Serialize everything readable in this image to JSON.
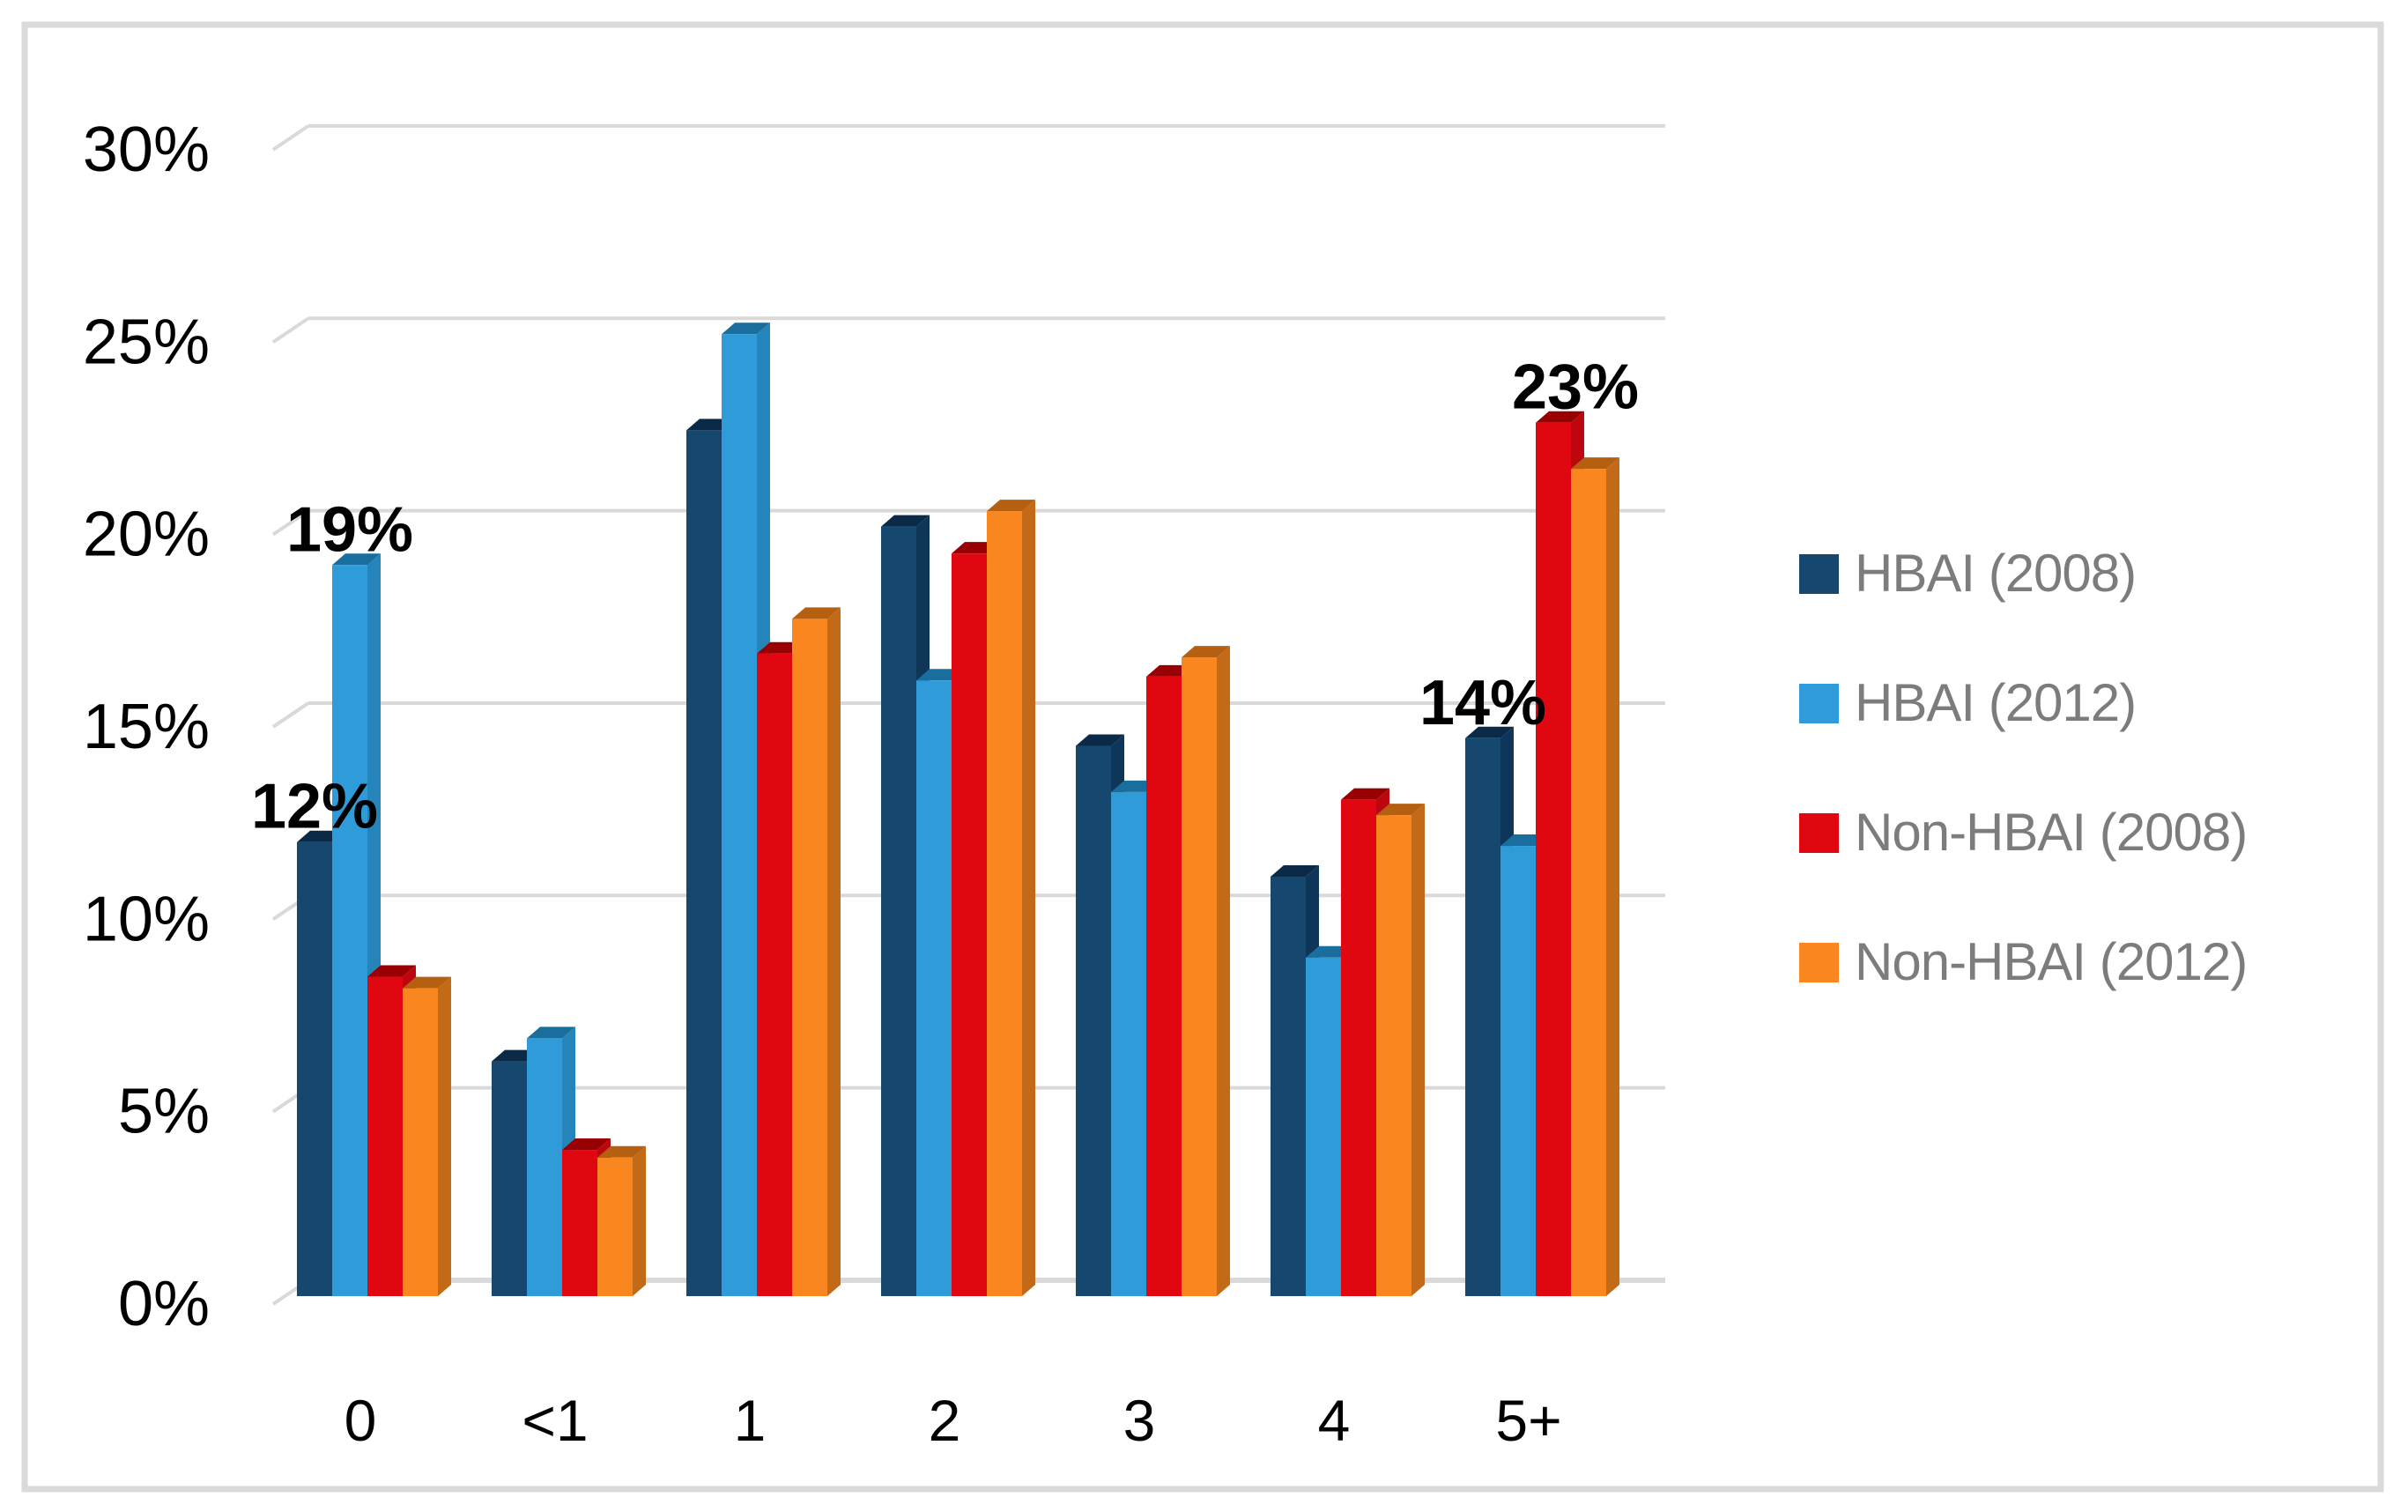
{
  "chart_data": {
    "type": "bar",
    "title": "",
    "xlabel": "",
    "ylabel": "",
    "categories": [
      "0",
      "<1",
      "1",
      "2",
      "3",
      "4",
      "5+"
    ],
    "series": [
      {
        "name": "HBAI (2008)",
        "color": "#16476F",
        "color_top": "#0A2A47",
        "color_side": "#0E3658",
        "values": [
          11.8,
          6.1,
          22.5,
          20.0,
          14.3,
          10.9,
          14.5
        ]
      },
      {
        "name": "HBAI (2012)",
        "color": "#2F9CD9",
        "color_top": "#1A6E9E",
        "color_side": "#2585BB",
        "values": [
          19.0,
          6.7,
          25.0,
          16.0,
          13.1,
          8.8,
          11.7
        ]
      },
      {
        "name": "Non-HBAI (2008)",
        "color": "#E10711",
        "color_top": "#990003",
        "color_side": "#BB070D",
        "values": [
          8.3,
          3.8,
          16.7,
          19.3,
          16.1,
          12.9,
          22.7
        ]
      },
      {
        "name": "Non-HBAI (2012)",
        "color": "#F9861F",
        "color_top": "#B55F10",
        "color_side": "#C36A18",
        "values": [
          8.0,
          3.6,
          17.6,
          20.4,
          16.6,
          12.5,
          21.5
        ]
      }
    ],
    "point_labels": [
      {
        "category_index": 0,
        "series_index": 0,
        "text": "12%",
        "dx": 0
      },
      {
        "category_index": 0,
        "series_index": 1,
        "text": "19%",
        "dx": 0
      },
      {
        "category_index": 6,
        "series_index": 0,
        "text": "14%",
        "dx": 0
      },
      {
        "category_index": 6,
        "series_index": 2,
        "text": "23%",
        "dx": 25
      }
    ],
    "y_axis": {
      "min": 0,
      "max": 30,
      "step": 5,
      "tick_labels": [
        "0%",
        "5%",
        "10%",
        "15%",
        "20%",
        "25%",
        "30%"
      ]
    },
    "legend_position": "right",
    "grid": true,
    "effect_3d": true,
    "colors": {
      "gridline": "#D9D9D9",
      "axis_text": "#000000",
      "data_label_text": "#000000",
      "legend_text": "#7C7C7C",
      "frame_border": "#DADADA",
      "background": "#FFFFFF"
    }
  }
}
